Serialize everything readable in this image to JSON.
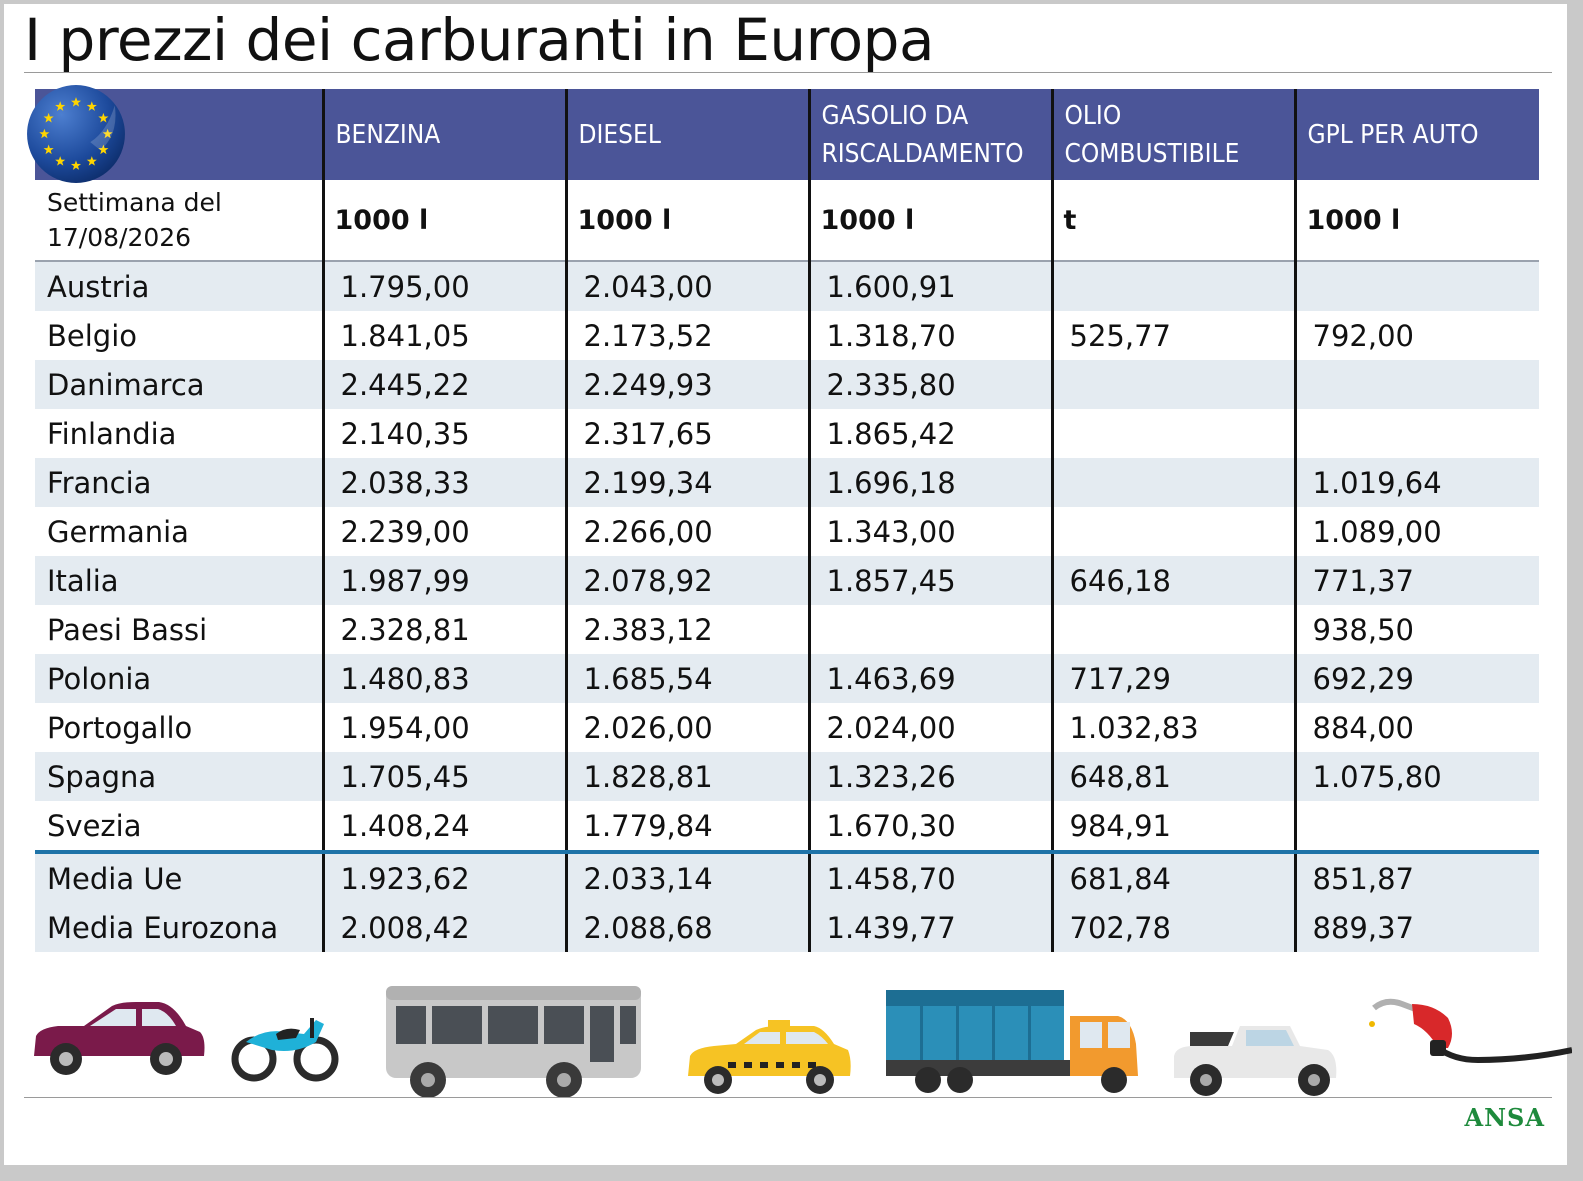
{
  "title": "I prezzi dei carburanti in Europa",
  "columns": [
    "BENZINA",
    "DIESEL",
    "GASOLIO DA RISCALDAMENTO",
    "OLIO COMBUSTIBILE",
    "GPL PER AUTO"
  ],
  "header_lines": [
    [
      "BENZINA"
    ],
    [
      "DIESEL"
    ],
    [
      "GASOLIO DA",
      "RISCALDAMENTO"
    ],
    [
      "OLIO",
      "COMBUSTIBILE"
    ],
    [
      "GPL PER AUTO"
    ]
  ],
  "week_label": "Settimana del",
  "week_date": "17/08/2026",
  "units": [
    "1000 l",
    "1000 l",
    "1000 l",
    "t",
    "1000 l"
  ],
  "rows": [
    {
      "country": "Austria",
      "values": [
        "1.795,00",
        "2.043,00",
        "1.600,91",
        "",
        ""
      ]
    },
    {
      "country": "Belgio",
      "values": [
        "1.841,05",
        "2.173,52",
        "1.318,70",
        "525,77",
        "792,00"
      ]
    },
    {
      "country": "Danimarca",
      "values": [
        "2.445,22",
        "2.249,93",
        "2.335,80",
        "",
        ""
      ]
    },
    {
      "country": "Finlandia",
      "values": [
        "2.140,35",
        "2.317,65",
        "1.865,42",
        "",
        ""
      ]
    },
    {
      "country": "Francia",
      "values": [
        "2.038,33",
        "2.199,34",
        "1.696,18",
        "",
        "1.019,64"
      ]
    },
    {
      "country": "Germania",
      "values": [
        "2.239,00",
        "2.266,00",
        "1.343,00",
        "",
        "1.089,00"
      ]
    },
    {
      "country": "Italia",
      "values": [
        "1.987,99",
        "2.078,92",
        "1.857,45",
        "646,18",
        "771,37"
      ]
    },
    {
      "country": "Paesi Bassi",
      "values": [
        "2.328,81",
        "2.383,12",
        "",
        "",
        "938,50"
      ]
    },
    {
      "country": "Polonia",
      "values": [
        "1.480,83",
        "1.685,54",
        "1.463,69",
        "717,29",
        "692,29"
      ]
    },
    {
      "country": "Portogallo",
      "values": [
        "1.954,00",
        "2.026,00",
        "2.024,00",
        "1.032,83",
        "884,00"
      ]
    },
    {
      "country": "Spagna",
      "values": [
        "1.705,45",
        "1.828,81",
        "1.323,26",
        "648,81",
        "1.075,80"
      ]
    },
    {
      "country": "Svezia",
      "values": [
        "1.408,24",
        "1.779,84",
        "1.670,30",
        "984,91",
        ""
      ]
    }
  ],
  "averages": [
    {
      "country": "Media Ue",
      "values": [
        "1.923,62",
        "2.033,14",
        "1.458,70",
        "681,84",
        "851,87"
      ]
    },
    {
      "country": "Media Eurozona",
      "values": [
        "2.008,42",
        "2.088,68",
        "1.439,77",
        "702,78",
        "889,37"
      ]
    }
  ],
  "vehicles": [
    "car",
    "motorcycle",
    "bus",
    "taxi",
    "truck",
    "jeep",
    "fuel-nozzle"
  ],
  "colors": {
    "header": "#4b5598",
    "stripe": "#e4ebf1",
    "average_rule": "#1e73a8",
    "brand": "#1e8a3c"
  },
  "credit": "ANSA"
}
